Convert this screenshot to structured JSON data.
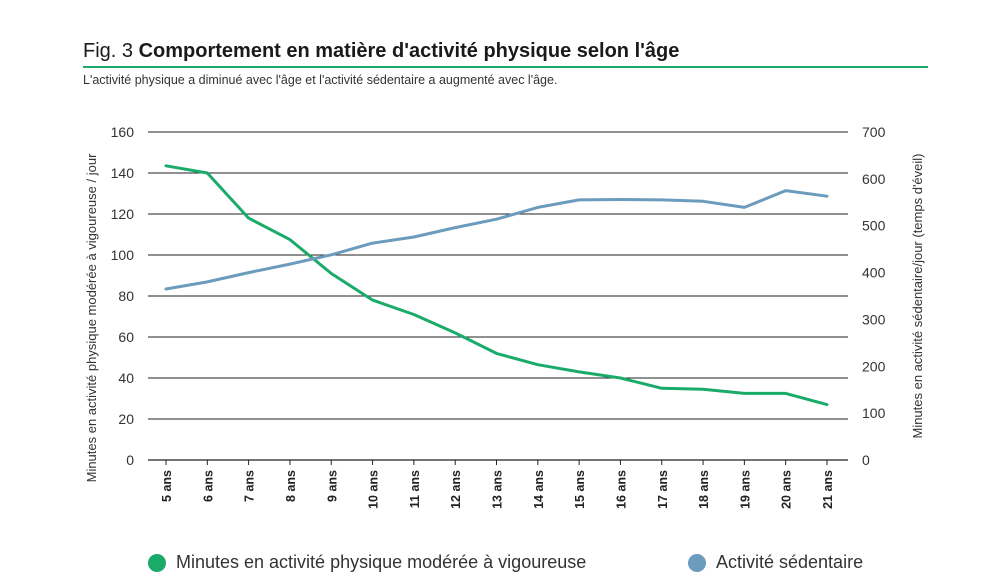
{
  "figure": {
    "number": "Fig. 3",
    "title": "Comportement en matière d'activité physique selon l'âge",
    "subtitle": "L'activité physique a diminué avec l'âge et l'activité sédentaire a augmenté avec l'âge."
  },
  "colors": {
    "mvpa": "#1aab6a",
    "sedentary": "#6b9bbd",
    "rule": "#1aab6a",
    "grid": "#222222"
  },
  "chart_data": {
    "type": "line",
    "title": "Comportement en matière d'activité physique selon l'âge",
    "categories": [
      "5 ans",
      "6 ans",
      "7 ans",
      "8 ans",
      "9 ans",
      "10 ans",
      "11 ans",
      "12 ans",
      "13 ans",
      "14 ans",
      "15 ans",
      "16 ans",
      "17 ans",
      "18 ans",
      "19 ans",
      "20 ans",
      "21 ans"
    ],
    "left_axis": {
      "label": "Minutes en activité physique modérée à vigoureuse / jour",
      "ylim": [
        0,
        160
      ],
      "ticks": [
        0,
        20,
        40,
        60,
        80,
        100,
        120,
        140,
        160
      ]
    },
    "right_axis": {
      "label": "Minutes en activité sédentaire/jour (temps d'éveil)",
      "ylim": [
        0,
        700
      ],
      "ticks": [
        0,
        100,
        200,
        300,
        400,
        500,
        600,
        700
      ]
    },
    "series": [
      {
        "name": "Minutes en activité physique modérée à vigoureuse",
        "axis": "left",
        "values": [
          143.5,
          140,
          118,
          107.5,
          91,
          78,
          71,
          62,
          52,
          46.5,
          43,
          40,
          35,
          34.5,
          32.5,
          32.5,
          27
        ]
      },
      {
        "name": "Activité sédentaire",
        "axis": "right",
        "values": [
          365,
          380,
          400,
          418,
          438,
          463,
          476,
          496,
          514,
          539,
          555,
          556,
          555,
          552,
          539,
          575,
          563
        ]
      }
    ],
    "grid": true,
    "legend_position": "bottom"
  }
}
